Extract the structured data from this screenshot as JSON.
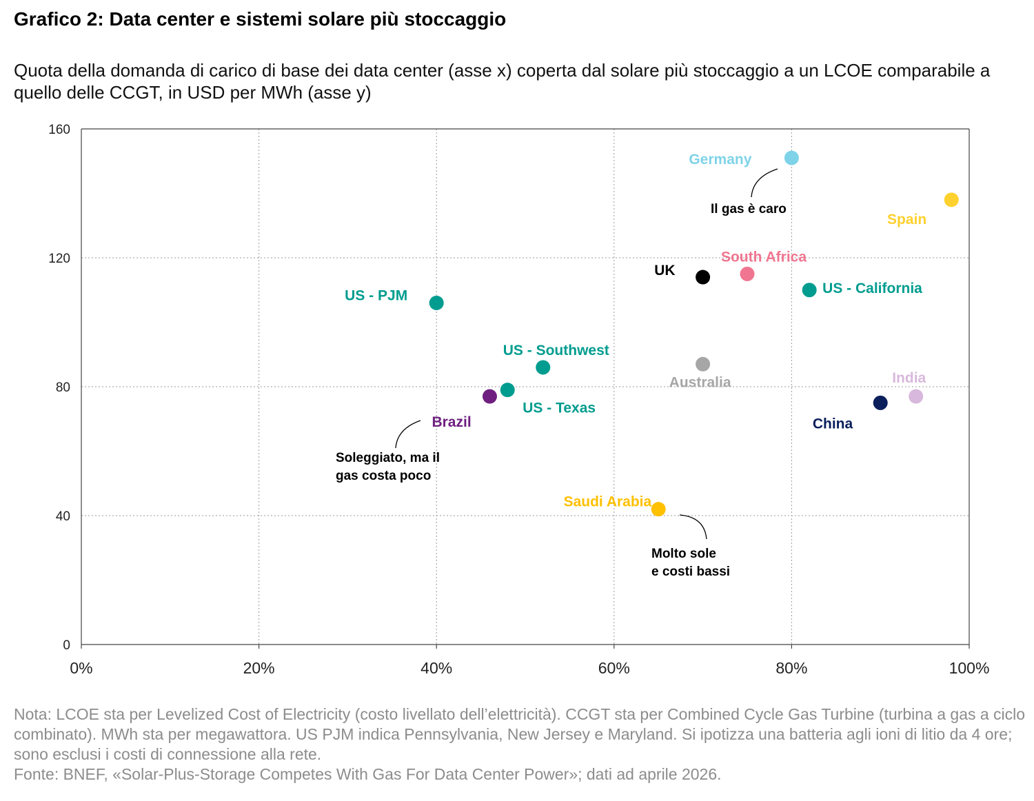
{
  "title": "Grafico 2: Data center e sistemi solare più stoccaggio",
  "subtitle": "Quota della domanda di carico di base dei data center (asse x) coperta dal solare più stoccaggio a un LCOE comparabile a quello delle CCGT, in USD per MWh (asse y)",
  "note": "Nota: LCOE sta per Levelized Cost of Electricity (costo livellato dell’elettricità). CCGT sta per Combined Cycle Gas Turbine (turbina a gas a ciclo combinato). MWh sta per megawattora. US PJM indica Pennsylvania, New Jersey e Maryland. Si ipotizza una batteria agli ioni di litio da 4 ore; sono esclusi i costi di connessione alla rete.",
  "source": "Fonte: BNEF, «Solar-Plus-Storage Competes With Gas For Data Center Power»; dati ad aprile 2026.",
  "chart_data": {
    "type": "scatter",
    "xlabel": "",
    "ylabel": "",
    "xlim": [
      0,
      100
    ],
    "ylim": [
      0,
      160
    ],
    "x_ticks": [
      0,
      20,
      40,
      60,
      80,
      100
    ],
    "x_tick_labels": [
      "0%",
      "20%",
      "40%",
      "60%",
      "80%",
      "100%"
    ],
    "y_ticks": [
      0,
      40,
      80,
      120,
      160
    ],
    "y_tick_labels": [
      "0",
      "40",
      "80",
      "120",
      "160"
    ],
    "grid": true,
    "grid_style": "dotted",
    "points": [
      {
        "label": "Germany",
        "x": 80,
        "y": 151,
        "color": "#7FD3E8"
      },
      {
        "label": "Spain",
        "x": 98,
        "y": 138,
        "color": "#FFD12E"
      },
      {
        "label": "UK",
        "x": 70,
        "y": 114,
        "color": "#000000"
      },
      {
        "label": "South Africa",
        "x": 75,
        "y": 115,
        "color": "#F07590"
      },
      {
        "label": "US - California",
        "x": 82,
        "y": 110,
        "color": "#009C8F"
      },
      {
        "label": "US - PJM",
        "x": 40,
        "y": 106,
        "color": "#009C8F"
      },
      {
        "label": "US - Southwest",
        "x": 52,
        "y": 86,
        "color": "#009C8F"
      },
      {
        "label": "Australia",
        "x": 70,
        "y": 87,
        "color": "#A6A6A6"
      },
      {
        "label": "US - Texas",
        "x": 48,
        "y": 79,
        "color": "#009C8F"
      },
      {
        "label": "Brazil",
        "x": 46,
        "y": 77,
        "color": "#6E1F80"
      },
      {
        "label": "India",
        "x": 94,
        "y": 77,
        "color": "#D8B8DC"
      },
      {
        "label": "China",
        "x": 90,
        "y": 75,
        "color": "#0A1F5C"
      },
      {
        "label": "Saudi Arabia",
        "x": 65,
        "y": 42,
        "color": "#FFC000"
      }
    ],
    "annotations": [
      {
        "text": [
          "Il gas è caro"
        ]
      },
      {
        "text": [
          "Soleggiato, ma il",
          "gas costa poco"
        ]
      },
      {
        "text": [
          "Molto sole",
          "e costi bassi"
        ]
      }
    ]
  }
}
